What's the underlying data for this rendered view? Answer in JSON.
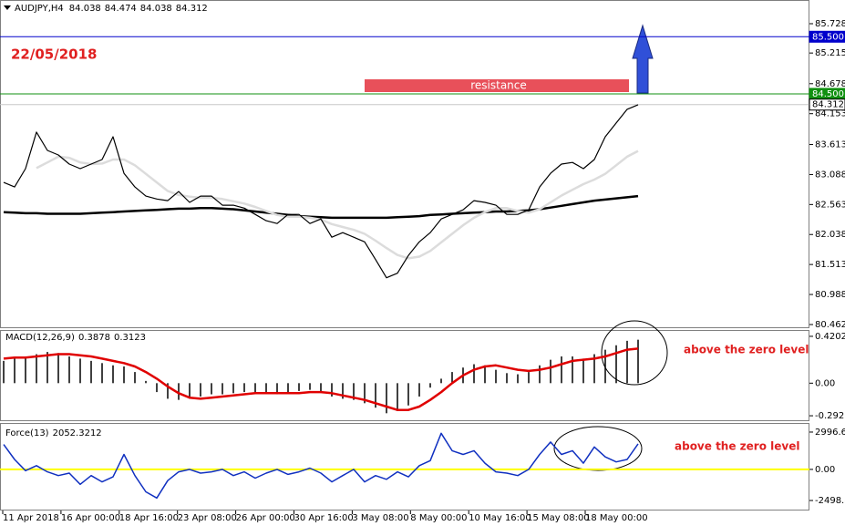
{
  "chart_data": [
    {
      "type": "line",
      "title": "AUDJPY,H4",
      "quote": [
        84.038,
        84.474,
        84.038,
        84.312
      ],
      "date_label": "22/05/2018",
      "annotation": "resistance",
      "ylim": [
        80.398,
        86.143
      ],
      "yticks": [
        85.728,
        85.215,
        84.678,
        84.153,
        83.613,
        83.088,
        82.563,
        82.038,
        81.513,
        80.988,
        80.462
      ],
      "hlines": [
        {
          "value": 85.5,
          "label": "85.500",
          "color": "#0000cc"
        },
        {
          "value": 84.5,
          "label": "84.500",
          "color": "#109010"
        },
        {
          "value": 84.312,
          "label": "84.312",
          "color": "#c8c8c8"
        }
      ],
      "x_labels": [
        "11 Apr 2018",
        "16 Apr 00:00",
        "18 Apr 16:00",
        "23 Apr 08:00",
        "26 Apr 00:00",
        "30 Apr 16:00",
        "3 May 08:00",
        "8 May 00:00",
        "10 May 16:00",
        "15 May 08:00",
        "18 May 00:00"
      ],
      "series": [
        {
          "color": "#000000",
          "width": 1.2,
          "values": [
            82.95,
            82.87,
            83.19,
            83.83,
            83.51,
            83.43,
            83.27,
            83.19,
            83.27,
            83.35,
            83.75,
            83.11,
            82.87,
            82.71,
            82.66,
            82.63,
            82.79,
            82.6,
            82.71,
            82.71,
            82.55,
            82.55,
            82.5,
            82.39,
            82.28,
            82.23,
            82.39,
            82.39,
            82.23,
            82.31,
            81.99,
            82.07,
            81.99,
            81.91,
            81.6,
            81.28,
            81.36,
            81.67,
            81.91,
            82.07,
            82.31,
            82.39,
            82.47,
            82.63,
            82.6,
            82.55,
            82.39,
            82.39,
            82.47,
            82.87,
            83.11,
            83.27,
            83.3,
            83.19,
            83.35,
            83.75,
            83.99,
            84.23,
            84.31
          ]
        },
        {
          "color": "#dcdcdc",
          "width": 2.5,
          "values": [
            null,
            null,
            null,
            83.2,
            83.3,
            83.4,
            83.38,
            83.3,
            83.27,
            83.28,
            83.35,
            83.35,
            83.25,
            83.1,
            82.95,
            82.8,
            82.73,
            82.7,
            82.68,
            82.68,
            82.66,
            82.62,
            82.58,
            82.52,
            82.45,
            82.38,
            82.35,
            82.35,
            82.33,
            82.3,
            82.22,
            82.17,
            82.12,
            82.05,
            81.93,
            81.8,
            81.68,
            81.62,
            81.65,
            81.75,
            81.9,
            82.05,
            82.2,
            82.33,
            82.43,
            82.5,
            82.5,
            82.45,
            82.42,
            82.48,
            82.6,
            82.72,
            82.82,
            82.92,
            83.0,
            83.1,
            83.25,
            83.4,
            83.5
          ]
        },
        {
          "color": "#000000",
          "width": 2.5,
          "values": [
            82.43,
            82.42,
            82.41,
            82.41,
            82.4,
            82.4,
            82.4,
            82.4,
            82.41,
            82.42,
            82.43,
            82.44,
            82.45,
            82.46,
            82.47,
            82.48,
            82.49,
            82.49,
            82.5,
            82.5,
            82.49,
            82.48,
            82.46,
            82.44,
            82.42,
            82.4,
            82.38,
            82.36,
            82.35,
            82.34,
            82.33,
            82.33,
            82.33,
            82.33,
            82.33,
            82.33,
            82.34,
            82.35,
            82.36,
            82.38,
            82.39,
            82.4,
            82.41,
            82.42,
            82.43,
            82.44,
            82.44,
            82.45,
            82.46,
            82.48,
            82.51,
            82.54,
            82.57,
            82.6,
            82.63,
            82.65,
            82.67,
            82.69,
            82.71
          ]
        }
      ]
    },
    {
      "type": "macd",
      "title": "MACD(12,26,9)",
      "readout": [
        0.3878,
        0.3123
      ],
      "annotation": "above the zero level",
      "ylim": [
        -0.341,
        0.477
      ],
      "yticks": [
        0.4202,
        {
          "value": 0,
          "label": "0.00"
        },
        -0.2925
      ],
      "series": [
        {
          "color": "#000000",
          "values": [
            0.2,
            0.22,
            0.24,
            0.26,
            0.28,
            0.27,
            0.24,
            0.22,
            0.2,
            0.18,
            0.16,
            0.15,
            0.1,
            0.02,
            -0.08,
            -0.14,
            -0.15,
            -0.14,
            -0.12,
            -0.1,
            -0.1,
            -0.09,
            -0.08,
            -0.08,
            -0.09,
            -0.1,
            -0.09,
            -0.07,
            -0.06,
            -0.08,
            -0.12,
            -0.14,
            -0.15,
            -0.18,
            -0.22,
            -0.27,
            -0.25,
            -0.2,
            -0.12,
            -0.04,
            0.04,
            0.1,
            0.14,
            0.17,
            0.16,
            0.12,
            0.09,
            0.08,
            0.1,
            0.16,
            0.21,
            0.24,
            0.24,
            0.22,
            0.26,
            0.3,
            0.34,
            0.38,
            0.39
          ]
        },
        {
          "color": "#e00000",
          "values": [
            0.22,
            0.23,
            0.23,
            0.24,
            0.25,
            0.26,
            0.26,
            0.25,
            0.24,
            0.22,
            0.2,
            0.18,
            0.15,
            0.1,
            0.04,
            -0.03,
            -0.09,
            -0.13,
            -0.14,
            -0.13,
            -0.12,
            -0.11,
            -0.1,
            -0.09,
            -0.09,
            -0.09,
            -0.09,
            -0.09,
            -0.08,
            -0.08,
            -0.09,
            -0.11,
            -0.13,
            -0.15,
            -0.18,
            -0.21,
            -0.24,
            -0.24,
            -0.21,
            -0.15,
            -0.08,
            0.0,
            0.07,
            0.12,
            0.15,
            0.16,
            0.14,
            0.12,
            0.11,
            0.12,
            0.14,
            0.17,
            0.2,
            0.21,
            0.22,
            0.24,
            0.27,
            0.3,
            0.31
          ]
        }
      ]
    },
    {
      "type": "force",
      "title": "Force(13)",
      "readout": [
        2052.3212
      ],
      "annotation": "above the zero level",
      "ylim": [
        -3303,
        3727
      ],
      "yticks": [
        2996.628,
        {
          "value": 0,
          "label": "0.00"
        },
        -2498.88
      ],
      "zero_color": "#ffff00",
      "series": [
        {
          "color": "#1030c0",
          "values": [
            2000,
            800,
            -100,
            300,
            -200,
            -500,
            -300,
            -1200,
            -500,
            -1000,
            -600,
            1200,
            -500,
            -1800,
            -2300,
            -900,
            -200,
            0,
            -300,
            -200,
            0,
            -500,
            -200,
            -700,
            -300,
            0,
            -400,
            -200,
            100,
            -300,
            -1000,
            -500,
            0,
            -1000,
            -500,
            -800,
            -200,
            -600,
            300,
            700,
            2900,
            1500,
            1200,
            1500,
            500,
            -200,
            -300,
            -500,
            0,
            1200,
            2200,
            1200,
            1500,
            500,
            1800,
            1000,
            600,
            800,
            2052
          ]
        }
      ]
    }
  ]
}
